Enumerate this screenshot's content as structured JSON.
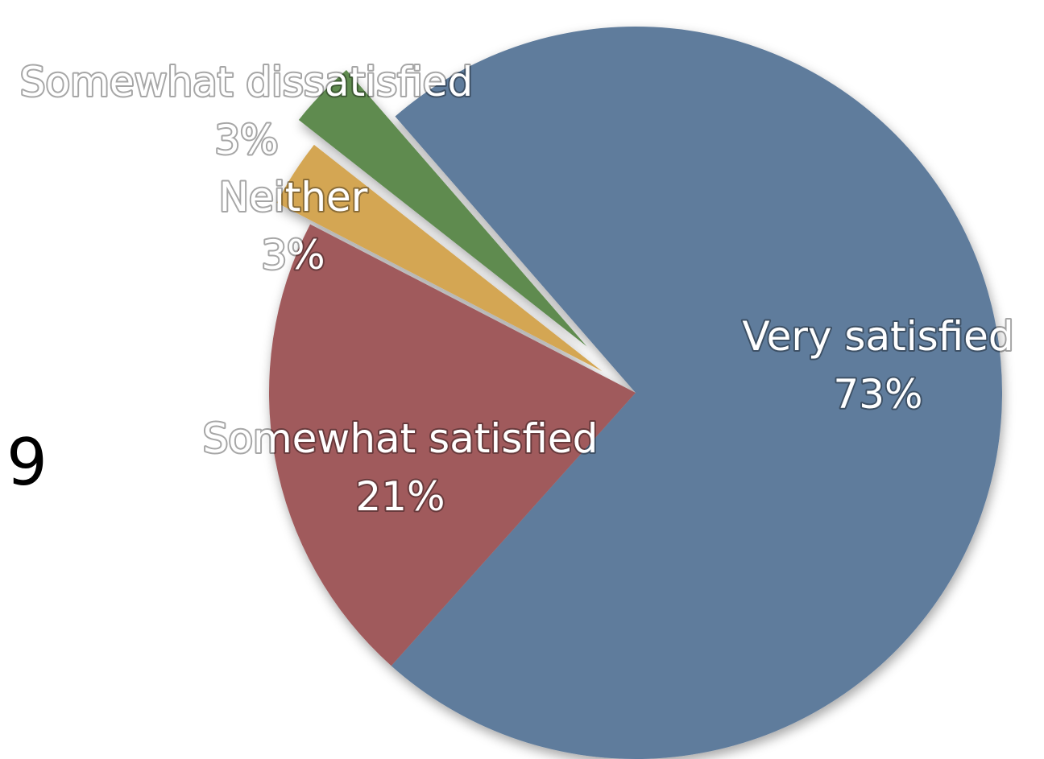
{
  "slide_number": "9",
  "chart_data": {
    "type": "pie",
    "title": "",
    "slices": [
      {
        "label": "Very satisfied",
        "percent_label": "73%",
        "value": 73,
        "color": "#5f7b9c",
        "exploded": false
      },
      {
        "label": "Somewhat satisfied",
        "percent_label": "21%",
        "value": 21,
        "color": "#a05a5c",
        "exploded": false
      },
      {
        "label": "Neither",
        "percent_label": "3%",
        "value": 3,
        "color": "#d4a653",
        "exploded": true
      },
      {
        "label": "Somewhat dissatisfied",
        "percent_label": "3%",
        "value": 3,
        "color": "#5f8b4f",
        "exploded": true
      }
    ]
  }
}
